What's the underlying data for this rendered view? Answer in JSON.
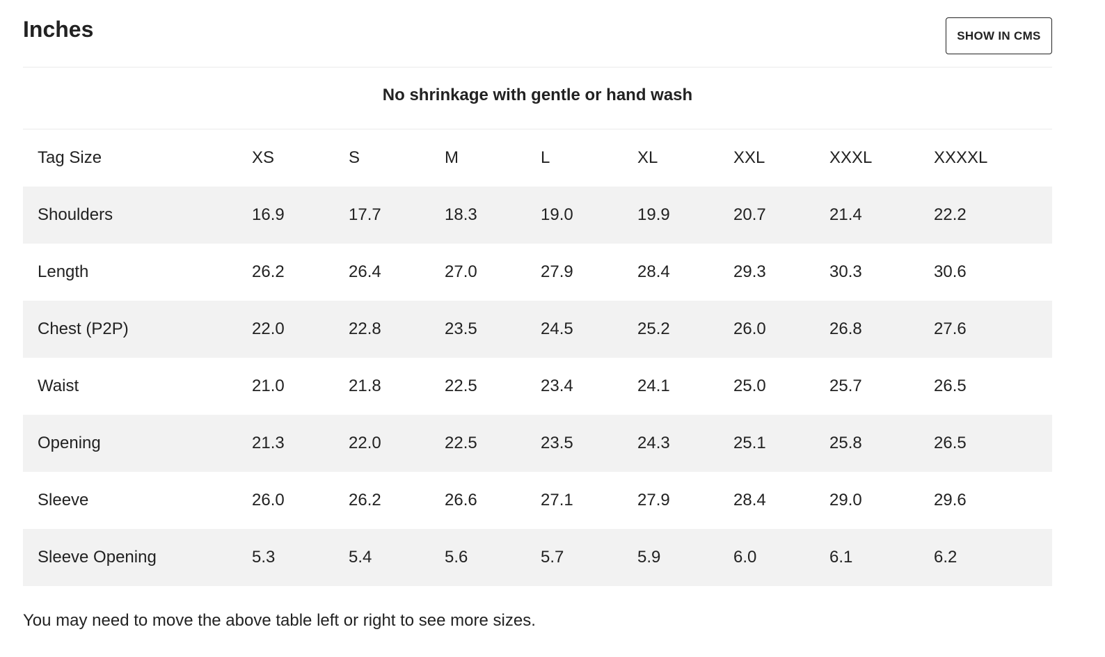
{
  "title": "Inches",
  "show_in_cms_label": "SHOW IN CMS",
  "subtitle": "No shrinkage with gentle or hand wash",
  "table": {
    "header": [
      "Tag Size",
      "XS",
      "S",
      "M",
      "L",
      "XL",
      "XXL",
      "XXXL",
      "XXXXL"
    ],
    "rows": [
      [
        "Shoulders",
        "16.9",
        "17.7",
        "18.3",
        "19.0",
        "19.9",
        "20.7",
        "21.4",
        "22.2"
      ],
      [
        "Length",
        "26.2",
        "26.4",
        "27.0",
        "27.9",
        "28.4",
        "29.3",
        "30.3",
        "30.6"
      ],
      [
        "Chest (P2P)",
        "22.0",
        "22.8",
        "23.5",
        "24.5",
        "25.2",
        "26.0",
        "26.8",
        "27.6"
      ],
      [
        "Waist",
        "21.0",
        "21.8",
        "22.5",
        "23.4",
        "24.1",
        "25.0",
        "25.7",
        "26.5"
      ],
      [
        "Opening",
        "21.3",
        "22.0",
        "22.5",
        "23.5",
        "24.3",
        "25.1",
        "25.8",
        "26.5"
      ],
      [
        "Sleeve",
        "26.0",
        "26.2",
        "26.6",
        "27.1",
        "27.9",
        "28.4",
        "29.0",
        "29.6"
      ],
      [
        "Sleeve Opening",
        "5.3",
        "5.4",
        "5.6",
        "5.7",
        "5.9",
        "6.0",
        "6.1",
        "6.2"
      ]
    ]
  },
  "note": "You may need to move the above table left or right to see more sizes.",
  "colors": {
    "text": "#222222",
    "stripe": "#f2f2f2",
    "divider": "#ebebeb",
    "background": "#ffffff"
  }
}
